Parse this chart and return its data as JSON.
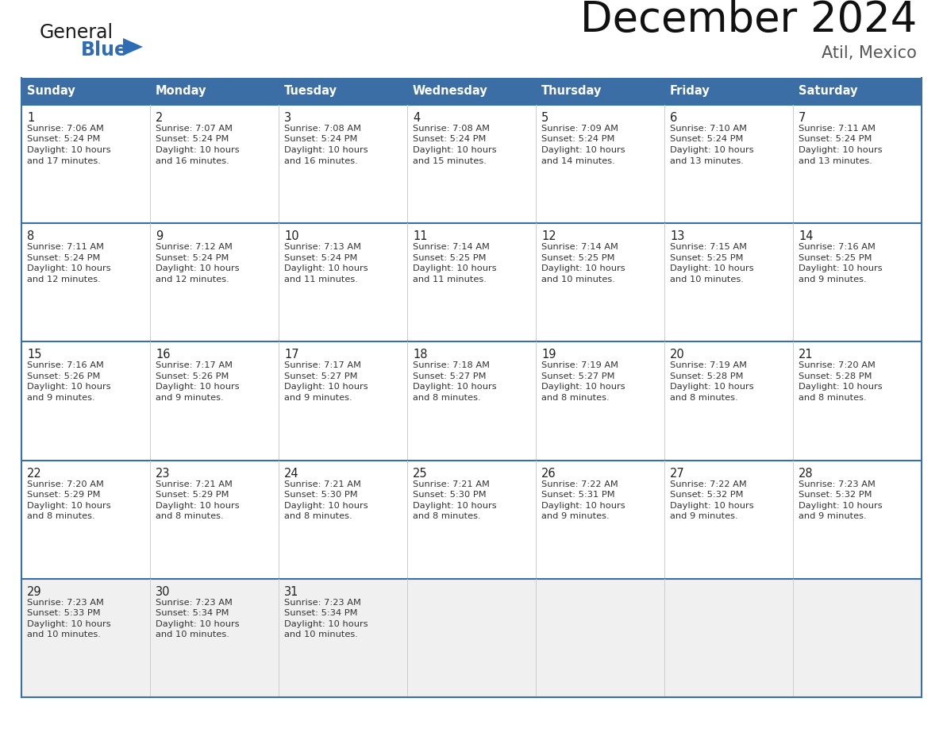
{
  "title": "December 2024",
  "subtitle": "Atil, Mexico",
  "header_bg": "#3A6EA5",
  "header_text_color": "#FFFFFF",
  "cell_bg_normal": "#FFFFFF",
  "cell_bg_last": "#F0F0F0",
  "border_color_main": "#3A6EA5",
  "border_color_cell": "#CCCCCC",
  "text_color": "#333333",
  "day_number_color": "#222222",
  "day_headers": [
    "Sunday",
    "Monday",
    "Tuesday",
    "Wednesday",
    "Thursday",
    "Friday",
    "Saturday"
  ],
  "weeks": [
    [
      {
        "day": 1,
        "sunrise": "7:06 AM",
        "sunset": "5:24 PM",
        "daylight_h": "10 hours",
        "daylight_m": "and 17 minutes."
      },
      {
        "day": 2,
        "sunrise": "7:07 AM",
        "sunset": "5:24 PM",
        "daylight_h": "10 hours",
        "daylight_m": "and 16 minutes."
      },
      {
        "day": 3,
        "sunrise": "7:08 AM",
        "sunset": "5:24 PM",
        "daylight_h": "10 hours",
        "daylight_m": "and 16 minutes."
      },
      {
        "day": 4,
        "sunrise": "7:08 AM",
        "sunset": "5:24 PM",
        "daylight_h": "10 hours",
        "daylight_m": "and 15 minutes."
      },
      {
        "day": 5,
        "sunrise": "7:09 AM",
        "sunset": "5:24 PM",
        "daylight_h": "10 hours",
        "daylight_m": "and 14 minutes."
      },
      {
        "day": 6,
        "sunrise": "7:10 AM",
        "sunset": "5:24 PM",
        "daylight_h": "10 hours",
        "daylight_m": "and 13 minutes."
      },
      {
        "day": 7,
        "sunrise": "7:11 AM",
        "sunset": "5:24 PM",
        "daylight_h": "10 hours",
        "daylight_m": "and 13 minutes."
      }
    ],
    [
      {
        "day": 8,
        "sunrise": "7:11 AM",
        "sunset": "5:24 PM",
        "daylight_h": "10 hours",
        "daylight_m": "and 12 minutes."
      },
      {
        "day": 9,
        "sunrise": "7:12 AM",
        "sunset": "5:24 PM",
        "daylight_h": "10 hours",
        "daylight_m": "and 12 minutes."
      },
      {
        "day": 10,
        "sunrise": "7:13 AM",
        "sunset": "5:24 PM",
        "daylight_h": "10 hours",
        "daylight_m": "and 11 minutes."
      },
      {
        "day": 11,
        "sunrise": "7:14 AM",
        "sunset": "5:25 PM",
        "daylight_h": "10 hours",
        "daylight_m": "and 11 minutes."
      },
      {
        "day": 12,
        "sunrise": "7:14 AM",
        "sunset": "5:25 PM",
        "daylight_h": "10 hours",
        "daylight_m": "and 10 minutes."
      },
      {
        "day": 13,
        "sunrise": "7:15 AM",
        "sunset": "5:25 PM",
        "daylight_h": "10 hours",
        "daylight_m": "and 10 minutes."
      },
      {
        "day": 14,
        "sunrise": "7:16 AM",
        "sunset": "5:25 PM",
        "daylight_h": "10 hours",
        "daylight_m": "and 9 minutes."
      }
    ],
    [
      {
        "day": 15,
        "sunrise": "7:16 AM",
        "sunset": "5:26 PM",
        "daylight_h": "10 hours",
        "daylight_m": "and 9 minutes."
      },
      {
        "day": 16,
        "sunrise": "7:17 AM",
        "sunset": "5:26 PM",
        "daylight_h": "10 hours",
        "daylight_m": "and 9 minutes."
      },
      {
        "day": 17,
        "sunrise": "7:17 AM",
        "sunset": "5:27 PM",
        "daylight_h": "10 hours",
        "daylight_m": "and 9 minutes."
      },
      {
        "day": 18,
        "sunrise": "7:18 AM",
        "sunset": "5:27 PM",
        "daylight_h": "10 hours",
        "daylight_m": "and 8 minutes."
      },
      {
        "day": 19,
        "sunrise": "7:19 AM",
        "sunset": "5:27 PM",
        "daylight_h": "10 hours",
        "daylight_m": "and 8 minutes."
      },
      {
        "day": 20,
        "sunrise": "7:19 AM",
        "sunset": "5:28 PM",
        "daylight_h": "10 hours",
        "daylight_m": "and 8 minutes."
      },
      {
        "day": 21,
        "sunrise": "7:20 AM",
        "sunset": "5:28 PM",
        "daylight_h": "10 hours",
        "daylight_m": "and 8 minutes."
      }
    ],
    [
      {
        "day": 22,
        "sunrise": "7:20 AM",
        "sunset": "5:29 PM",
        "daylight_h": "10 hours",
        "daylight_m": "and 8 minutes."
      },
      {
        "day": 23,
        "sunrise": "7:21 AM",
        "sunset": "5:29 PM",
        "daylight_h": "10 hours",
        "daylight_m": "and 8 minutes."
      },
      {
        "day": 24,
        "sunrise": "7:21 AM",
        "sunset": "5:30 PM",
        "daylight_h": "10 hours",
        "daylight_m": "and 8 minutes."
      },
      {
        "day": 25,
        "sunrise": "7:21 AM",
        "sunset": "5:30 PM",
        "daylight_h": "10 hours",
        "daylight_m": "and 8 minutes."
      },
      {
        "day": 26,
        "sunrise": "7:22 AM",
        "sunset": "5:31 PM",
        "daylight_h": "10 hours",
        "daylight_m": "and 9 minutes."
      },
      {
        "day": 27,
        "sunrise": "7:22 AM",
        "sunset": "5:32 PM",
        "daylight_h": "10 hours",
        "daylight_m": "and 9 minutes."
      },
      {
        "day": 28,
        "sunrise": "7:23 AM",
        "sunset": "5:32 PM",
        "daylight_h": "10 hours",
        "daylight_m": "and 9 minutes."
      }
    ],
    [
      {
        "day": 29,
        "sunrise": "7:23 AM",
        "sunset": "5:33 PM",
        "daylight_h": "10 hours",
        "daylight_m": "and 10 minutes."
      },
      {
        "day": 30,
        "sunrise": "7:23 AM",
        "sunset": "5:34 PM",
        "daylight_h": "10 hours",
        "daylight_m": "and 10 minutes."
      },
      {
        "day": 31,
        "sunrise": "7:23 AM",
        "sunset": "5:34 PM",
        "daylight_h": "10 hours",
        "daylight_m": "and 10 minutes."
      },
      null,
      null,
      null,
      null
    ]
  ],
  "logo_color_general": "#1A1A1A",
  "logo_color_blue": "#2E6DB4",
  "logo_triangle_color": "#2E6DB4",
  "title_color": "#111111",
  "subtitle_color": "#555555"
}
